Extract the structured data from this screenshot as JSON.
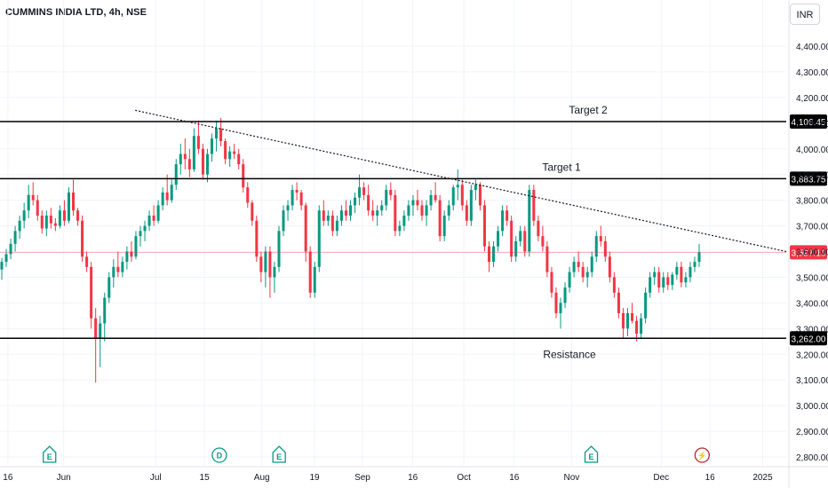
{
  "header": {
    "title": "CUMMINS INDIA LTD, 4h, NSE",
    "currency": "INR"
  },
  "colors": {
    "up": "#089981",
    "down": "#f23645",
    "line": "#000000",
    "grid": "#f0f3fa",
    "axis_text": "#131722"
  },
  "chart_data": {
    "type": "candlestick",
    "ylim": [
      2760,
      4560
    ],
    "y_ticks": [
      2800,
      2900,
      3000,
      3100,
      3200,
      3300,
      3400,
      3500,
      3600,
      3700,
      3800,
      3900,
      4000,
      4100,
      4200,
      4300,
      4400
    ],
    "y_tick_labels": [
      "2,800.00",
      "2,900.00",
      "3,000.00",
      "3,100.00",
      "3,200.00",
      "3,300.00",
      "3,400.00",
      "3,500.00",
      "3,600.00",
      "3,700.00",
      "3,800.00",
      "3,900.00",
      "4,000.00",
      "4,100.00",
      "4,200.00",
      "4,300.00",
      "4,400.00"
    ],
    "x_ticks": [
      {
        "label": "16",
        "pos": 0.01
      },
      {
        "label": "Jun",
        "pos": 0.081
      },
      {
        "label": "Jul",
        "pos": 0.198
      },
      {
        "label": "15",
        "pos": 0.26
      },
      {
        "label": "Aug",
        "pos": 0.333
      },
      {
        "label": "19",
        "pos": 0.4
      },
      {
        "label": "Sep",
        "pos": 0.461
      },
      {
        "label": "16",
        "pos": 0.525
      },
      {
        "label": "Oct",
        "pos": 0.59
      },
      {
        "label": "16",
        "pos": 0.654
      },
      {
        "label": "Nov",
        "pos": 0.727
      },
      {
        "label": "Dec",
        "pos": 0.841
      },
      {
        "label": "16",
        "pos": 0.903
      },
      {
        "label": "2025",
        "pos": 0.97
      }
    ],
    "horizontal_lines": [
      {
        "value": 4106.45,
        "label": "4,106.45",
        "annotation": "Target 2"
      },
      {
        "value": 3883.75,
        "label": "3,883.75",
        "annotation": "Target 1"
      },
      {
        "value": 3262.0,
        "label": "3,262.00",
        "annotation": "Resistance"
      }
    ],
    "last_price": {
      "value": 3597.1,
      "label": "3,597.10"
    },
    "trendline": [
      {
        "pos": 0.172,
        "value": 4150
      },
      {
        "pos": 1.0,
        "value": 3600
      }
    ],
    "events": [
      {
        "letter": "E",
        "type": "earnings",
        "pos": 0.063
      },
      {
        "letter": "D",
        "type": "dividend",
        "pos": 0.279
      },
      {
        "letter": "E",
        "type": "earnings",
        "pos": 0.355
      },
      {
        "letter": "E",
        "type": "earnings",
        "pos": 0.752
      },
      {
        "letter": "⚡",
        "type": "split",
        "pos": 0.893
      }
    ],
    "candles": [
      [
        3530,
        3575,
        3490,
        3560
      ],
      [
        3560,
        3610,
        3540,
        3590
      ],
      [
        3590,
        3650,
        3570,
        3630
      ],
      [
        3630,
        3700,
        3600,
        3680
      ],
      [
        3680,
        3740,
        3650,
        3720
      ],
      [
        3720,
        3790,
        3690,
        3760
      ],
      [
        3760,
        3860,
        3730,
        3820
      ],
      [
        3820,
        3870,
        3780,
        3800
      ],
      [
        3800,
        3820,
        3720,
        3740
      ],
      [
        3740,
        3760,
        3670,
        3690
      ],
      [
        3690,
        3760,
        3660,
        3740
      ],
      [
        3740,
        3770,
        3690,
        3710
      ],
      [
        3710,
        3730,
        3680,
        3700
      ],
      [
        3700,
        3780,
        3690,
        3760
      ],
      [
        3760,
        3800,
        3700,
        3720
      ],
      [
        3720,
        3850,
        3710,
        3830
      ],
      [
        3830,
        3880,
        3740,
        3760
      ],
      [
        3760,
        3770,
        3700,
        3720
      ],
      [
        3720,
        3740,
        3560,
        3580
      ],
      [
        3580,
        3600,
        3520,
        3540
      ],
      [
        3540,
        3560,
        3300,
        3340
      ],
      [
        3340,
        3380,
        3090,
        3260
      ],
      [
        3260,
        3350,
        3150,
        3320
      ],
      [
        3320,
        3440,
        3250,
        3420
      ],
      [
        3420,
        3520,
        3400,
        3500
      ],
      [
        3500,
        3570,
        3460,
        3540
      ],
      [
        3540,
        3600,
        3500,
        3520
      ],
      [
        3520,
        3580,
        3500,
        3560
      ],
      [
        3560,
        3620,
        3530,
        3600
      ],
      [
        3600,
        3640,
        3560,
        3580
      ],
      [
        3580,
        3680,
        3570,
        3660
      ],
      [
        3660,
        3700,
        3620,
        3680
      ],
      [
        3680,
        3720,
        3640,
        3700
      ],
      [
        3700,
        3760,
        3680,
        3740
      ],
      [
        3740,
        3780,
        3700,
        3720
      ],
      [
        3720,
        3800,
        3710,
        3780
      ],
      [
        3780,
        3850,
        3760,
        3830
      ],
      [
        3830,
        3900,
        3780,
        3800
      ],
      [
        3800,
        3880,
        3790,
        3860
      ],
      [
        3860,
        3960,
        3840,
        3940
      ],
      [
        3940,
        4020,
        3900,
        3980
      ],
      [
        3980,
        4040,
        3920,
        3960
      ],
      [
        3960,
        4000,
        3890,
        3920
      ],
      [
        3920,
        4080,
        3910,
        4050
      ],
      [
        4050,
        4110,
        3980,
        4000
      ],
      [
        4000,
        4020,
        3880,
        3900
      ],
      [
        3900,
        4000,
        3870,
        3980
      ],
      [
        3980,
        4060,
        3950,
        4040
      ],
      [
        4040,
        4110,
        3990,
        4080
      ],
      [
        4080,
        4120,
        4010,
        4030
      ],
      [
        4030,
        4040,
        3940,
        3960
      ],
      [
        3960,
        4010,
        3930,
        3990
      ],
      [
        3990,
        4020,
        3960,
        3980
      ],
      [
        3980,
        4000,
        3920,
        3940
      ],
      [
        3940,
        3960,
        3830,
        3850
      ],
      [
        3850,
        3870,
        3770,
        3790
      ],
      [
        3790,
        3800,
        3700,
        3720
      ],
      [
        3720,
        3740,
        3560,
        3580
      ],
      [
        3580,
        3600,
        3480,
        3520
      ],
      [
        3520,
        3620,
        3460,
        3600
      ],
      [
        3600,
        3620,
        3420,
        3500
      ],
      [
        3500,
        3560,
        3440,
        3540
      ],
      [
        3540,
        3700,
        3520,
        3680
      ],
      [
        3680,
        3780,
        3660,
        3760
      ],
      [
        3760,
        3800,
        3720,
        3780
      ],
      [
        3780,
        3860,
        3760,
        3840
      ],
      [
        3840,
        3870,
        3800,
        3830
      ],
      [
        3830,
        3840,
        3760,
        3780
      ],
      [
        3780,
        3790,
        3560,
        3600
      ],
      [
        3600,
        3620,
        3420,
        3440
      ],
      [
        3440,
        3560,
        3420,
        3540
      ],
      [
        3540,
        3780,
        3520,
        3760
      ],
      [
        3760,
        3800,
        3700,
        3720
      ],
      [
        3720,
        3760,
        3700,
        3740
      ],
      [
        3740,
        3760,
        3660,
        3680
      ],
      [
        3680,
        3740,
        3660,
        3720
      ],
      [
        3720,
        3780,
        3700,
        3760
      ],
      [
        3760,
        3800,
        3720,
        3740
      ],
      [
        3740,
        3800,
        3720,
        3780
      ],
      [
        3780,
        3830,
        3750,
        3810
      ],
      [
        3810,
        3900,
        3780,
        3850
      ],
      [
        3850,
        3870,
        3800,
        3820
      ],
      [
        3820,
        3860,
        3740,
        3760
      ],
      [
        3760,
        3800,
        3720,
        3740
      ],
      [
        3740,
        3780,
        3700,
        3760
      ],
      [
        3760,
        3800,
        3740,
        3780
      ],
      [
        3780,
        3860,
        3760,
        3840
      ],
      [
        3840,
        3870,
        3800,
        3820
      ],
      [
        3820,
        3840,
        3660,
        3680
      ],
      [
        3680,
        3720,
        3660,
        3700
      ],
      [
        3700,
        3760,
        3680,
        3740
      ],
      [
        3740,
        3800,
        3720,
        3780
      ],
      [
        3780,
        3820,
        3740,
        3800
      ],
      [
        3800,
        3840,
        3760,
        3780
      ],
      [
        3780,
        3800,
        3720,
        3740
      ],
      [
        3740,
        3800,
        3700,
        3780
      ],
      [
        3780,
        3840,
        3760,
        3820
      ],
      [
        3820,
        3870,
        3790,
        3800
      ],
      [
        3800,
        3820,
        3640,
        3660
      ],
      [
        3660,
        3760,
        3640,
        3740
      ],
      [
        3740,
        3800,
        3720,
        3780
      ],
      [
        3780,
        3860,
        3760,
        3850
      ],
      [
        3850,
        3920,
        3800,
        3860
      ],
      [
        3860,
        3880,
        3760,
        3780
      ],
      [
        3780,
        3800,
        3700,
        3720
      ],
      [
        3720,
        3860,
        3700,
        3840
      ],
      [
        3840,
        3880,
        3800,
        3860
      ],
      [
        3860,
        3870,
        3760,
        3780
      ],
      [
        3780,
        3800,
        3600,
        3620
      ],
      [
        3620,
        3640,
        3520,
        3560
      ],
      [
        3560,
        3640,
        3540,
        3620
      ],
      [
        3620,
        3700,
        3600,
        3680
      ],
      [
        3680,
        3780,
        3660,
        3760
      ],
      [
        3760,
        3780,
        3700,
        3720
      ],
      [
        3720,
        3740,
        3560,
        3580
      ],
      [
        3580,
        3660,
        3560,
        3640
      ],
      [
        3640,
        3700,
        3620,
        3680
      ],
      [
        3680,
        3700,
        3580,
        3600
      ],
      [
        3600,
        3860,
        3580,
        3840
      ],
      [
        3840,
        3860,
        3700,
        3720
      ],
      [
        3720,
        3740,
        3640,
        3660
      ],
      [
        3660,
        3700,
        3600,
        3620
      ],
      [
        3620,
        3640,
        3500,
        3520
      ],
      [
        3520,
        3540,
        3420,
        3440
      ],
      [
        3440,
        3460,
        3340,
        3360
      ],
      [
        3360,
        3420,
        3300,
        3400
      ],
      [
        3400,
        3480,
        3380,
        3460
      ],
      [
        3460,
        3540,
        3440,
        3520
      ],
      [
        3520,
        3580,
        3500,
        3560
      ],
      [
        3560,
        3600,
        3520,
        3540
      ],
      [
        3540,
        3560,
        3480,
        3500
      ],
      [
        3500,
        3540,
        3460,
        3520
      ],
      [
        3520,
        3600,
        3500,
        3580
      ],
      [
        3580,
        3680,
        3560,
        3660
      ],
      [
        3660,
        3700,
        3620,
        3640
      ],
      [
        3640,
        3660,
        3560,
        3580
      ],
      [
        3580,
        3600,
        3480,
        3500
      ],
      [
        3500,
        3520,
        3420,
        3440
      ],
      [
        3440,
        3460,
        3340,
        3360
      ],
      [
        3360,
        3380,
        3260,
        3300
      ],
      [
        3300,
        3380,
        3270,
        3360
      ],
      [
        3360,
        3400,
        3320,
        3330
      ],
      [
        3330,
        3350,
        3250,
        3280
      ],
      [
        3280,
        3360,
        3260,
        3340
      ],
      [
        3340,
        3460,
        3320,
        3440
      ],
      [
        3440,
        3520,
        3420,
        3500
      ],
      [
        3500,
        3540,
        3470,
        3520
      ],
      [
        3520,
        3540,
        3440,
        3460
      ],
      [
        3460,
        3520,
        3440,
        3500
      ],
      [
        3500,
        3520,
        3450,
        3470
      ],
      [
        3470,
        3520,
        3450,
        3510
      ],
      [
        3510,
        3560,
        3490,
        3540
      ],
      [
        3540,
        3560,
        3460,
        3480
      ],
      [
        3480,
        3520,
        3460,
        3500
      ],
      [
        3500,
        3560,
        3480,
        3540
      ],
      [
        3540,
        3580,
        3520,
        3560
      ],
      [
        3560,
        3630,
        3540,
        3597.1
      ]
    ]
  }
}
